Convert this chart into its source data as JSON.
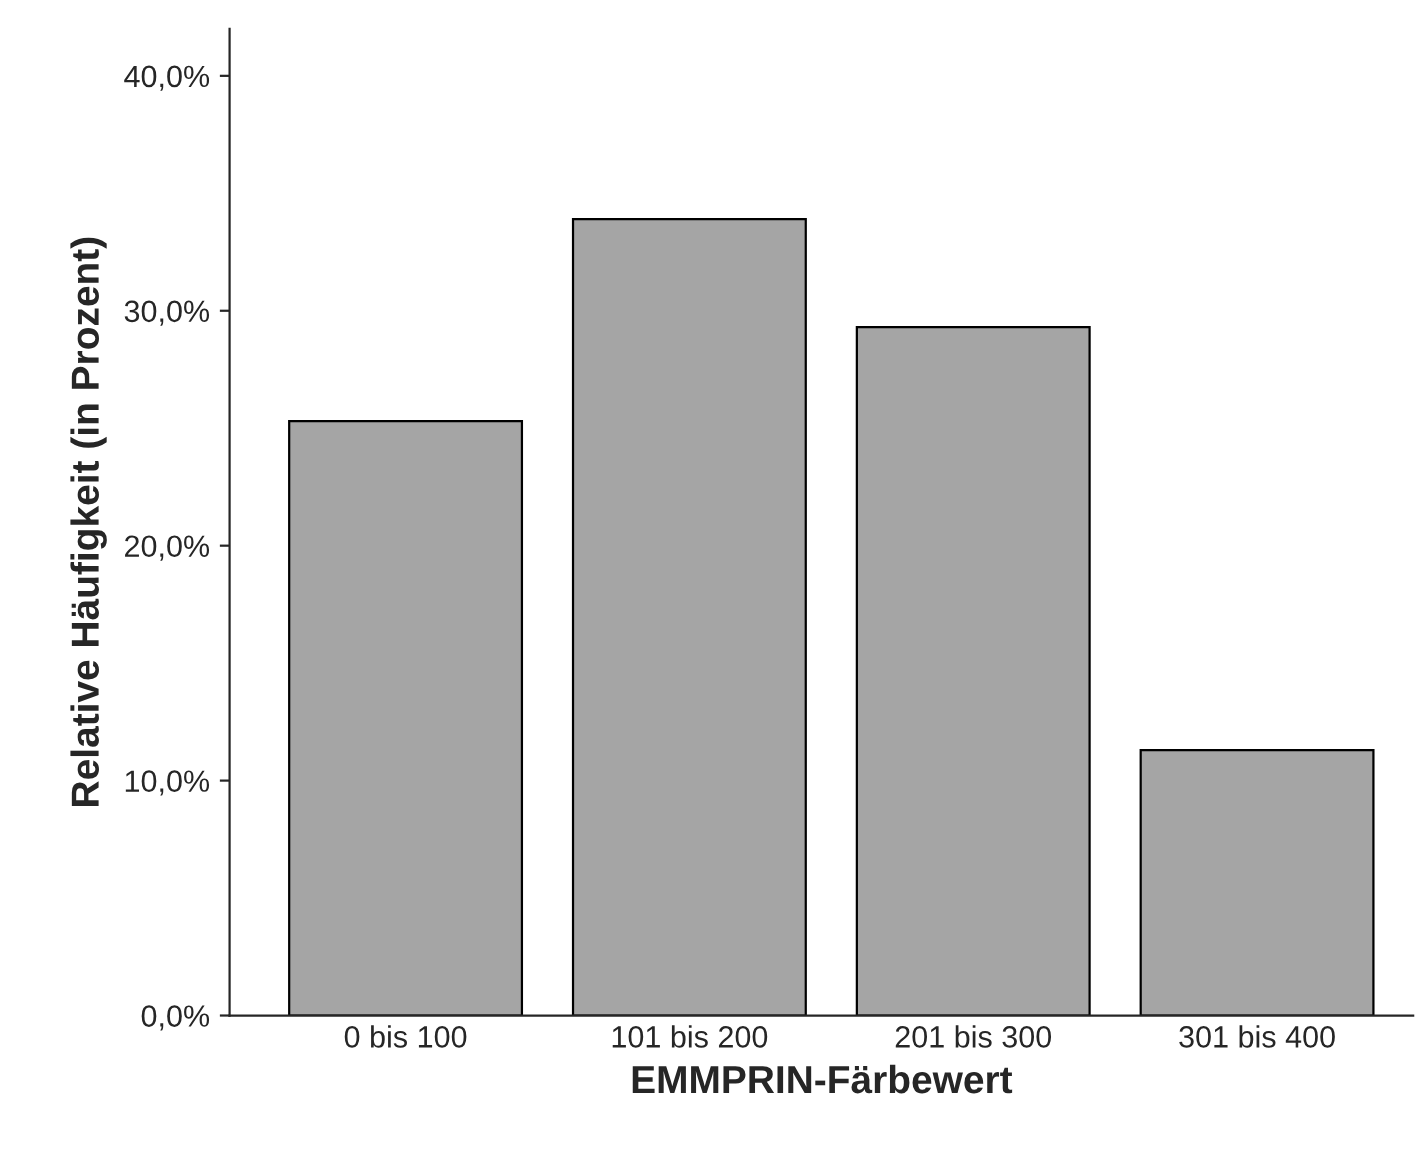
{
  "chart_data": {
    "type": "bar",
    "xlabel": "EMMPRIN-Färbewert",
    "ylabel": "Relative Häufigkeit (in Prozent)",
    "categories": [
      "0 bis 100",
      "101 bis 200",
      "201 bis 300",
      "301 bis 400"
    ],
    "values": [
      25.3,
      33.9,
      29.3,
      11.3
    ],
    "color": "#a5a5a5",
    "ylim": [
      0,
      42
    ],
    "yticks": [
      {
        "value": 0,
        "label": "0,0%"
      },
      {
        "value": 10,
        "label": "10,0%"
      },
      {
        "value": 20,
        "label": "20,0%"
      },
      {
        "value": 30,
        "label": "30,0%"
      },
      {
        "value": 40,
        "label": "40,0%"
      }
    ],
    "grid": false,
    "legend": false
  }
}
